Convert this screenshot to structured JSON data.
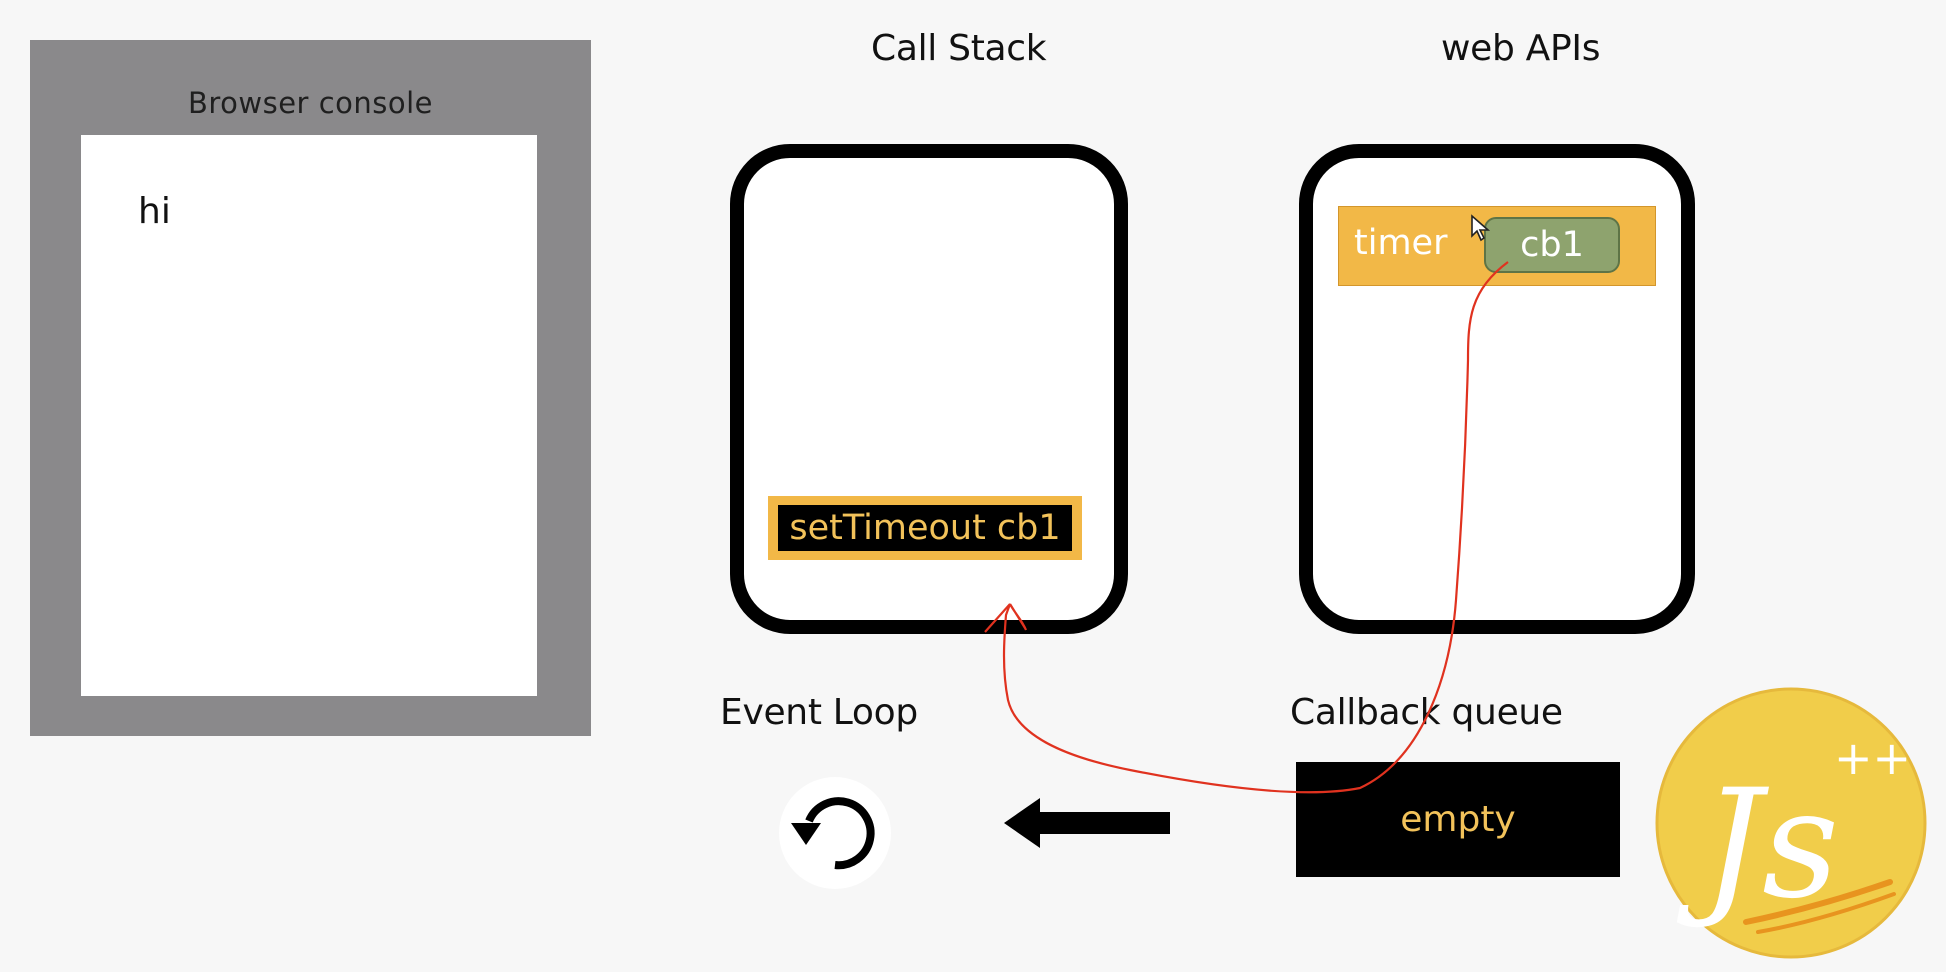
{
  "browser_console": {
    "title": "Browser  console",
    "lines": [
      "hi"
    ]
  },
  "call_stack": {
    "title": "Call Stack",
    "frames": [
      "setTimeout cb1"
    ]
  },
  "web_apis": {
    "title": "web APIs",
    "timer": {
      "label": "timer",
      "callback": "cb1"
    }
  },
  "event_loop": {
    "title": "Event Loop",
    "icon": "refresh-loop-icon"
  },
  "callback_queue": {
    "title": "Callback queue",
    "content": "empty"
  },
  "logo": {
    "text": "Js",
    "superscript": "++"
  },
  "colors": {
    "accent_orange": "#f2b847",
    "callback_green": "#8ea36e",
    "annotation_red": "#e0321f",
    "logo_yellow": "#f1cd4a"
  }
}
